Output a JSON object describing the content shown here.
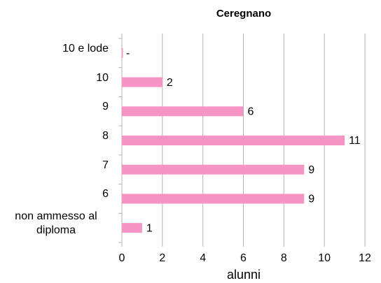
{
  "chart_data": {
    "type": "hbar",
    "title": "Ceregnano",
    "xlabel": "alunni",
    "categories": [
      "10 e lode",
      "10",
      "9",
      "8",
      "7",
      "6",
      "non ammesso al diploma"
    ],
    "values": [
      0,
      2,
      6,
      11,
      9,
      9,
      1
    ],
    "value_labels": [
      "-",
      "2",
      "6",
      "11",
      "9",
      "9",
      "1"
    ],
    "color": "#f794c6",
    "xlim": [
      0,
      12
    ],
    "xticks": [
      0,
      2,
      4,
      6,
      8,
      10,
      12
    ],
    "grid": true
  }
}
